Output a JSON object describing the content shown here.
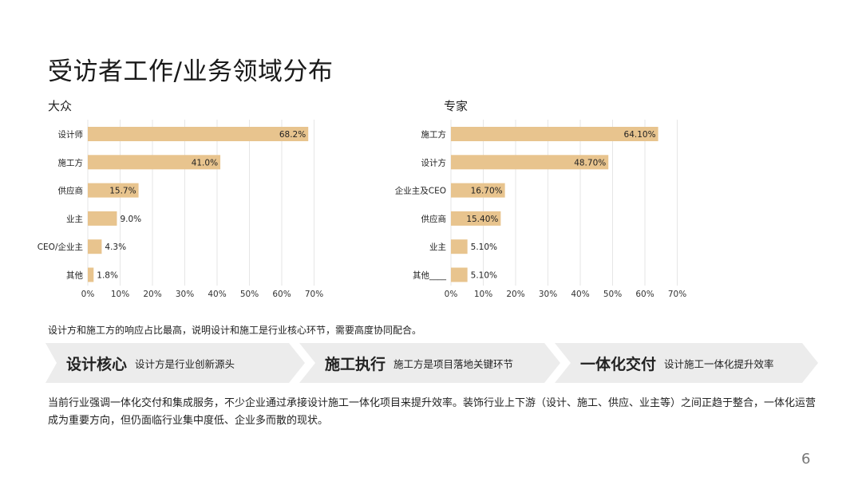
{
  "title": "受访者工作/业务领域分布",
  "chart_data": [
    {
      "type": "bar",
      "orientation": "horizontal",
      "subtitle": "大众",
      "categories": [
        "设计师",
        "施工方",
        "供应商",
        "业主",
        "CEO/企业主",
        "其他"
      ],
      "values": [
        68.2,
        41.0,
        15.7,
        9.0,
        4.3,
        1.8
      ],
      "labels": [
        "68.2%",
        "41.0%",
        "15.7%",
        "9.0%",
        "4.3%",
        "1.8%"
      ],
      "xlim": [
        0,
        70
      ],
      "xticks": [
        "0%",
        "10%",
        "20%",
        "30%",
        "40%",
        "50%",
        "60%",
        "70%"
      ],
      "grid": true,
      "bar_color": "#e8c48e"
    },
    {
      "type": "bar",
      "orientation": "horizontal",
      "subtitle": "专家",
      "categories": [
        "施工方",
        "设计方",
        "企业主及CEO",
        "供应商",
        "业主",
        "其他____"
      ],
      "values": [
        64.1,
        48.7,
        16.7,
        15.4,
        5.1,
        5.1
      ],
      "labels": [
        "64.10%",
        "48.70%",
        "16.70%",
        "15.40%",
        "5.10%",
        "5.10%"
      ],
      "xlim": [
        0,
        70
      ],
      "xticks": [
        "0%",
        "10%",
        "20%",
        "30%",
        "40%",
        "50%",
        "60%",
        "70%"
      ],
      "grid": true,
      "bar_color": "#e8c48e"
    }
  ],
  "summary": "设计方和施工方的响应占比最高，说明设计和施工是行业核心环节，需要高度协同配合。",
  "banner": [
    {
      "head": "设计核心",
      "desc": "设计方是行业创新源头"
    },
    {
      "head": "施工执行",
      "desc": "施工方是项目落地关键环节"
    },
    {
      "head": "一体化交付",
      "desc": "设计施工一体化提升效率"
    }
  ],
  "body": "当前行业强调一体化交付和集成服务，不少企业通过承接设计施工一体化项目来提升效率。装饰行业上下游（设计、施工、供应、业主等）之间正趋于整合，一体化运营成为重要方向，但仍面临行业集中度低、企业多而散的现状。",
  "page_number": "6",
  "colors": {
    "bar": "#e8c48e",
    "grid": "#e6e6e6",
    "banner": "#ececec",
    "text": "#222222"
  }
}
